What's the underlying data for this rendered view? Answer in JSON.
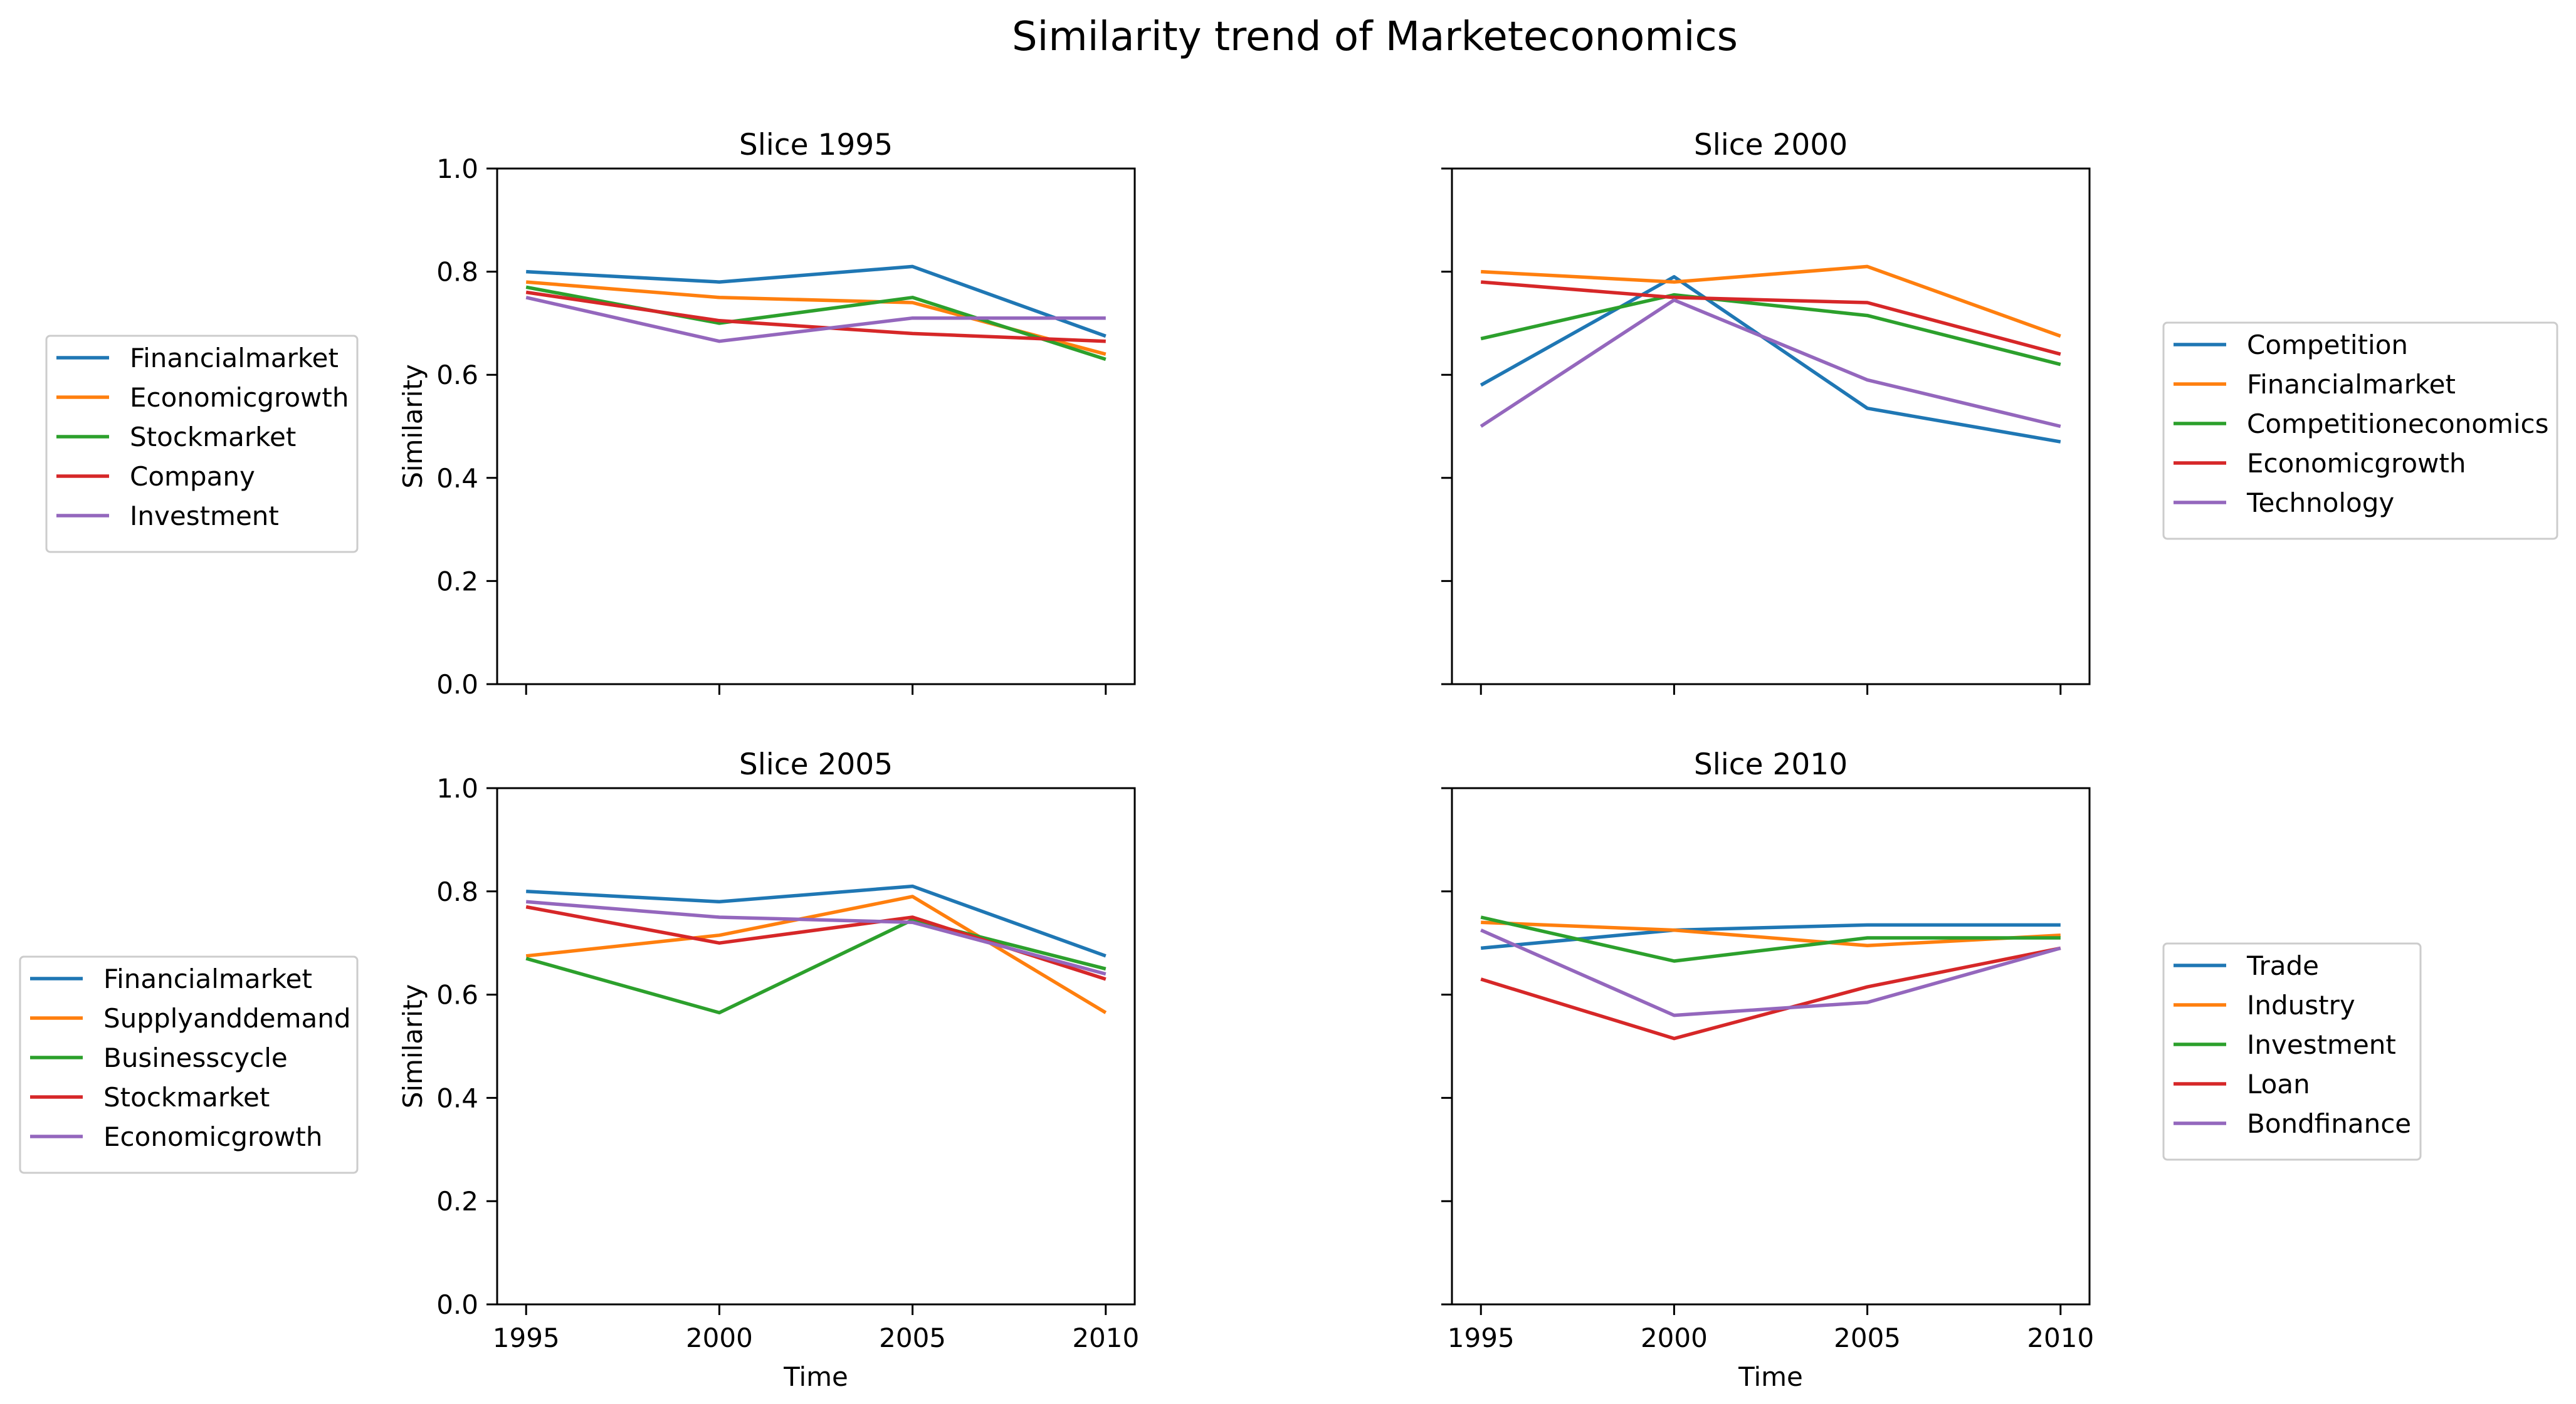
{
  "title": "Similarity trend of Marketeconomics",
  "chart_data": [
    {
      "type": "line",
      "title": "Slice 1995",
      "xlabel": "",
      "ylabel": "Similarity",
      "x": [
        1995,
        2000,
        2005,
        2010
      ],
      "xticks": [
        "1995",
        "2000",
        "2005",
        "2010"
      ],
      "xticklabels_visible": false,
      "yticks": [
        "0.0",
        "0.2",
        "0.4",
        "0.6",
        "0.8",
        "1.0"
      ],
      "yticklabels_visible": true,
      "ylim": [
        0,
        1
      ],
      "legend_position": "left",
      "series": [
        {
          "name": "Financialmarket",
          "color": "#1f77b4",
          "values": [
            0.8,
            0.78,
            0.81,
            0.675
          ]
        },
        {
          "name": "Economicgrowth",
          "color": "#ff7f0e",
          "values": [
            0.78,
            0.75,
            0.74,
            0.64
          ]
        },
        {
          "name": "Stockmarket",
          "color": "#2ca02c",
          "values": [
            0.77,
            0.7,
            0.75,
            0.63
          ]
        },
        {
          "name": "Company",
          "color": "#d62728",
          "values": [
            0.76,
            0.705,
            0.68,
            0.665
          ]
        },
        {
          "name": "Investment",
          "color": "#9467bd",
          "values": [
            0.75,
            0.665,
            0.71,
            0.71
          ]
        }
      ]
    },
    {
      "type": "line",
      "title": "Slice 2000",
      "xlabel": "",
      "ylabel": "",
      "x": [
        1995,
        2000,
        2005,
        2010
      ],
      "xticks": [
        "1995",
        "2000",
        "2005",
        "2010"
      ],
      "xticklabels_visible": false,
      "yticks": [
        "0.0",
        "0.2",
        "0.4",
        "0.6",
        "0.8",
        "1.0"
      ],
      "yticklabels_visible": false,
      "ylim": [
        0,
        1
      ],
      "legend_position": "right",
      "series": [
        {
          "name": "Competition",
          "color": "#1f77b4",
          "values": [
            0.58,
            0.79,
            0.535,
            0.47
          ]
        },
        {
          "name": "Financialmarket",
          "color": "#ff7f0e",
          "values": [
            0.8,
            0.78,
            0.81,
            0.675
          ]
        },
        {
          "name": "Competitioneconomics",
          "color": "#2ca02c",
          "values": [
            0.67,
            0.755,
            0.715,
            0.62
          ]
        },
        {
          "name": "Economicgrowth",
          "color": "#d62728",
          "values": [
            0.78,
            0.75,
            0.74,
            0.64
          ]
        },
        {
          "name": "Technology",
          "color": "#9467bd",
          "values": [
            0.5,
            0.745,
            0.59,
            0.5
          ]
        }
      ]
    },
    {
      "type": "line",
      "title": "Slice 2005",
      "xlabel": "Time",
      "ylabel": "Similarity",
      "x": [
        1995,
        2000,
        2005,
        2010
      ],
      "xticks": [
        "1995",
        "2000",
        "2005",
        "2010"
      ],
      "xticklabels_visible": true,
      "yticks": [
        "0.0",
        "0.2",
        "0.4",
        "0.6",
        "0.8",
        "1.0"
      ],
      "yticklabels_visible": true,
      "ylim": [
        0,
        1
      ],
      "legend_position": "left",
      "series": [
        {
          "name": "Financialmarket",
          "color": "#1f77b4",
          "values": [
            0.8,
            0.78,
            0.81,
            0.675
          ]
        },
        {
          "name": "Supplyanddemand",
          "color": "#ff7f0e",
          "values": [
            0.675,
            0.715,
            0.79,
            0.565
          ]
        },
        {
          "name": "Businesscycle",
          "color": "#2ca02c",
          "values": [
            0.67,
            0.565,
            0.745,
            0.65
          ]
        },
        {
          "name": "Stockmarket",
          "color": "#d62728",
          "values": [
            0.77,
            0.7,
            0.75,
            0.63
          ]
        },
        {
          "name": "Economicgrowth",
          "color": "#9467bd",
          "values": [
            0.78,
            0.75,
            0.74,
            0.64
          ]
        }
      ]
    },
    {
      "type": "line",
      "title": "Slice 2010",
      "xlabel": "Time",
      "ylabel": "",
      "x": [
        1995,
        2000,
        2005,
        2010
      ],
      "xticks": [
        "1995",
        "2000",
        "2005",
        "2010"
      ],
      "xticklabels_visible": true,
      "yticks": [
        "0.0",
        "0.2",
        "0.4",
        "0.6",
        "0.8",
        "1.0"
      ],
      "yticklabels_visible": false,
      "ylim": [
        0,
        1
      ],
      "legend_position": "right",
      "series": [
        {
          "name": "Trade",
          "color": "#1f77b4",
          "values": [
            0.69,
            0.725,
            0.735,
            0.735
          ]
        },
        {
          "name": "Industry",
          "color": "#ff7f0e",
          "values": [
            0.74,
            0.725,
            0.695,
            0.715
          ]
        },
        {
          "name": "Investment",
          "color": "#2ca02c",
          "values": [
            0.75,
            0.665,
            0.71,
            0.71
          ]
        },
        {
          "name": "Loan",
          "color": "#d62728",
          "values": [
            0.63,
            0.515,
            0.615,
            0.69
          ]
        },
        {
          "name": "Bondfinance",
          "color": "#9467bd",
          "values": [
            0.725,
            0.56,
            0.585,
            0.69
          ]
        }
      ]
    }
  ]
}
